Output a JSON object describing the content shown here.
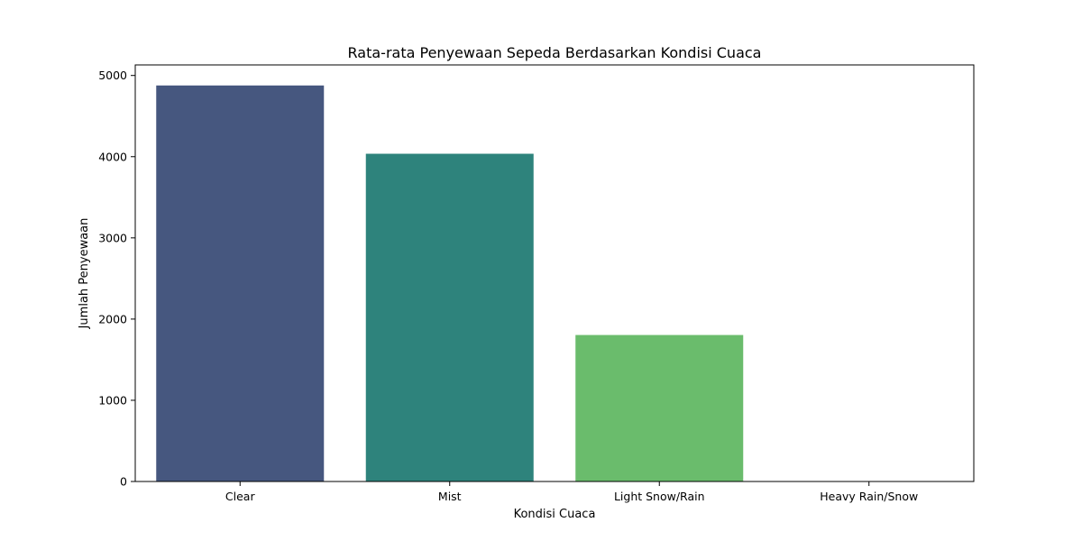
{
  "chart_data": {
    "type": "bar",
    "title": "Rata-rata Penyewaan Sepeda Berdasarkan Kondisi Cuaca",
    "xlabel": "Kondisi Cuaca",
    "ylabel": "Jumlah Penyewaan",
    "categories": [
      "Clear",
      "Mist",
      "Light Snow/Rain",
      "Heavy Rain/Snow"
    ],
    "values": [
      4877,
      4036,
      1804,
      0
    ],
    "colors": [
      "#46577f",
      "#2e837c",
      "#6abc6c",
      "#d3e055"
    ],
    "ylim": [
      0,
      5130
    ],
    "yticks": [
      0,
      1000,
      2000,
      3000,
      4000,
      5000
    ],
    "grid": false,
    "legend": "none"
  }
}
